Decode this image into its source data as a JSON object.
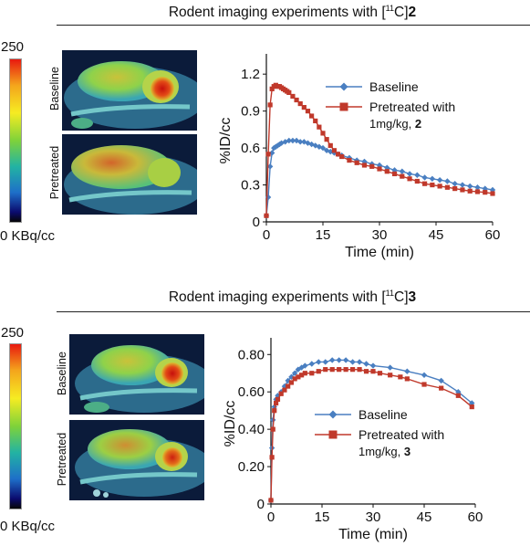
{
  "panels": [
    {
      "title_prefix": "Rodent imaging experiments with [",
      "title_sup": "11",
      "title_mid": "C]",
      "title_compound": "2",
      "scale_max": "250",
      "scale_min": "0 KBq/cc",
      "image_labels": [
        "Baseline",
        "Pretreated"
      ]
    },
    {
      "title_prefix": "Rodent imaging experiments with [",
      "title_sup": "11",
      "title_mid": "C]",
      "title_compound": "3",
      "scale_max": "250",
      "scale_min": "0 KBq/cc",
      "image_labels": [
        "Baseline",
        "Pretreated"
      ]
    }
  ],
  "colors": {
    "baseline": "#4a7fc1",
    "pretreated": "#c0392b"
  },
  "chart_data": [
    {
      "type": "line",
      "title": "",
      "xlabel": "Time (min)",
      "ylabel": "%ID/cc",
      "xlim": [
        0,
        60
      ],
      "ylim": [
        0,
        1.32
      ],
      "xticks": [
        0,
        15,
        30,
        45,
        60
      ],
      "xtick_labels": [
        "0",
        "15",
        "30",
        "45",
        "60"
      ],
      "yticks": [
        0,
        0.3,
        0.6,
        0.9,
        1.2
      ],
      "ytick_labels": [
        "0",
        "0.3",
        "0.6",
        "0.9",
        "1.2"
      ],
      "legend_position": "top-right",
      "legend": {
        "baseline": "Baseline",
        "pretreated_line1": "Pretreated with",
        "pretreated_line2": "1mg/kg, ",
        "pretreated_compound": "2"
      },
      "series": [
        {
          "name": "Baseline",
          "x": [
            0,
            0.5,
            1,
            1.5,
            2,
            2.5,
            3,
            3.5,
            4,
            5,
            6,
            7,
            8,
            9,
            10,
            11,
            12,
            13,
            14,
            15,
            16,
            17,
            18,
            19,
            20,
            22,
            24,
            26,
            28,
            30,
            32,
            34,
            36,
            38,
            40,
            42,
            44,
            46,
            48,
            50,
            52,
            54,
            56,
            58,
            60
          ],
          "y": [
            0.05,
            0.2,
            0.45,
            0.56,
            0.6,
            0.61,
            0.62,
            0.63,
            0.64,
            0.65,
            0.66,
            0.66,
            0.66,
            0.65,
            0.65,
            0.64,
            0.63,
            0.62,
            0.61,
            0.6,
            0.58,
            0.57,
            0.56,
            0.55,
            0.54,
            0.52,
            0.5,
            0.49,
            0.47,
            0.46,
            0.44,
            0.42,
            0.41,
            0.39,
            0.38,
            0.36,
            0.35,
            0.34,
            0.33,
            0.31,
            0.3,
            0.29,
            0.28,
            0.27,
            0.26
          ]
        },
        {
          "name": "Pretreated with 1mg/kg, 2",
          "x": [
            0,
            0.5,
            1,
            1.5,
            2,
            2.5,
            3,
            3.5,
            4,
            4.5,
            5,
            5.5,
            6,
            7,
            8,
            9,
            10,
            11,
            12,
            13,
            14,
            15,
            16,
            17,
            18,
            19,
            20,
            22,
            24,
            26,
            28,
            30,
            32,
            34,
            36,
            38,
            40,
            42,
            44,
            46,
            48,
            50,
            52,
            54,
            56,
            58,
            60
          ],
          "y": [
            0.05,
            0.55,
            0.95,
            1.08,
            1.1,
            1.11,
            1.1,
            1.1,
            1.09,
            1.08,
            1.07,
            1.06,
            1.05,
            1.02,
            0.99,
            0.96,
            0.93,
            0.9,
            0.86,
            0.82,
            0.77,
            0.72,
            0.67,
            0.62,
            0.58,
            0.55,
            0.53,
            0.5,
            0.48,
            0.46,
            0.45,
            0.43,
            0.41,
            0.39,
            0.37,
            0.35,
            0.33,
            0.31,
            0.3,
            0.29,
            0.28,
            0.27,
            0.26,
            0.25,
            0.245,
            0.24,
            0.23
          ]
        }
      ]
    },
    {
      "type": "line",
      "title": "",
      "xlabel": "Time (min)",
      "ylabel": "%ID/cc",
      "xlim": [
        0,
        60
      ],
      "ylim": [
        0,
        0.86
      ],
      "xticks": [
        0,
        15,
        30,
        45,
        60
      ],
      "xtick_labels": [
        "0",
        "15",
        "30",
        "45",
        "60"
      ],
      "yticks": [
        0,
        0.2,
        0.4,
        0.6,
        0.8
      ],
      "ytick_labels": [
        "0",
        "0.20",
        "0.40",
        "0.60",
        "0.80"
      ],
      "legend_position": "bottom-right",
      "legend": {
        "baseline": "Baseline",
        "pretreated_line1": "Pretreated with",
        "pretreated_line2": "1mg/kg, ",
        "pretreated_compound": "3"
      },
      "series": [
        {
          "name": "Baseline",
          "x": [
            0,
            0.3,
            0.6,
            1,
            1.5,
            2,
            3,
            4,
            5,
            6,
            7,
            8,
            9,
            10,
            12,
            14,
            16,
            18,
            20,
            22,
            24,
            26,
            28,
            30,
            35,
            40,
            45,
            50,
            55,
            59
          ],
          "y": [
            0.02,
            0.3,
            0.45,
            0.52,
            0.56,
            0.58,
            0.6,
            0.63,
            0.66,
            0.68,
            0.7,
            0.72,
            0.73,
            0.74,
            0.75,
            0.76,
            0.76,
            0.77,
            0.77,
            0.77,
            0.76,
            0.76,
            0.75,
            0.74,
            0.73,
            0.71,
            0.69,
            0.66,
            0.6,
            0.54
          ]
        },
        {
          "name": "Pretreated with 1mg/kg, 3",
          "x": [
            0,
            0.3,
            0.6,
            1,
            1.5,
            2,
            3,
            4,
            5,
            6,
            7,
            8,
            9,
            10,
            12,
            14,
            16,
            18,
            20,
            22,
            24,
            26,
            28,
            30,
            32,
            35,
            38,
            40,
            45,
            50,
            55,
            59
          ],
          "y": [
            0.02,
            0.25,
            0.4,
            0.5,
            0.54,
            0.56,
            0.59,
            0.61,
            0.63,
            0.65,
            0.67,
            0.68,
            0.69,
            0.7,
            0.7,
            0.71,
            0.72,
            0.72,
            0.72,
            0.72,
            0.72,
            0.72,
            0.71,
            0.71,
            0.7,
            0.69,
            0.68,
            0.67,
            0.64,
            0.62,
            0.58,
            0.52
          ]
        }
      ]
    }
  ]
}
